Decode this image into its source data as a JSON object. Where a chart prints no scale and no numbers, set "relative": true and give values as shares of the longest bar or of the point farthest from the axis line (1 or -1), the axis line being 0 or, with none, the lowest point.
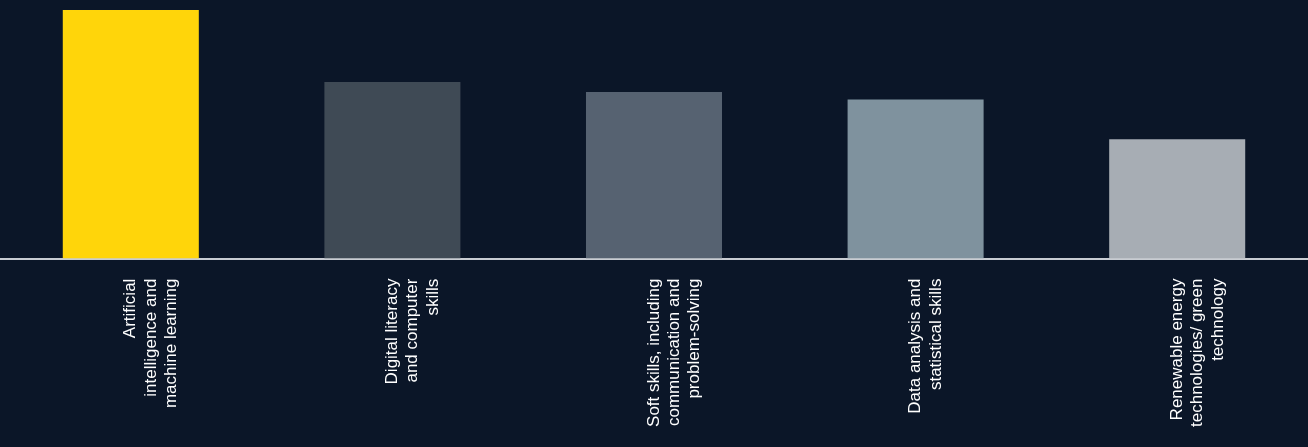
{
  "chart_data": {
    "type": "bar",
    "relative": true,
    "categories": [
      "Artificial\nintelligence and\nmachine learning",
      "Digital literacy\nand computer\nskills",
      "Soft skills, including\ncommunication and\nproblem-solving",
      "Data analysis and\nstatistical skills",
      "Renewable energy\ntechnologies/ green\ntechnology"
    ],
    "values": [
      1,
      0.71,
      0.67,
      0.64,
      0.48
    ],
    "colors": [
      "#ffd50a",
      "#3f4a55",
      "#566271",
      "#7f929e",
      "#a7adb4"
    ],
    "legend": false
  }
}
